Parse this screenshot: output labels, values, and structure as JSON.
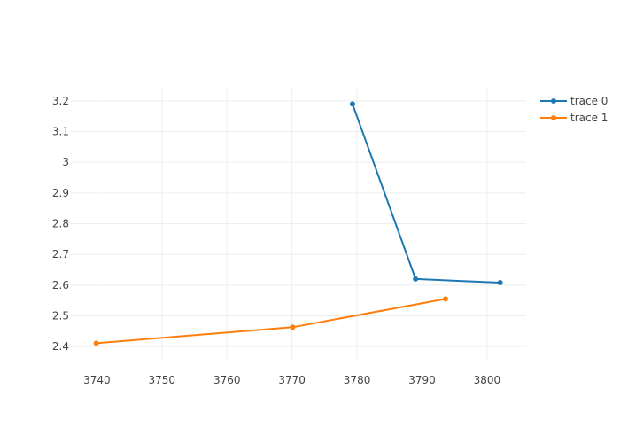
{
  "chart_data": {
    "type": "line",
    "title": "",
    "xlabel": "",
    "ylabel": "",
    "xlim": [
      3736,
      3806
    ],
    "ylim": [
      2.36,
      3.24
    ],
    "x_ticks": [
      3740,
      3750,
      3760,
      3770,
      3780,
      3790,
      3800
    ],
    "y_ticks": [
      2.4,
      2.5,
      2.6,
      2.7,
      2.8,
      2.9,
      3,
      3.1,
      3.2
    ],
    "grid": true,
    "legend_position": "top-right",
    "series": [
      {
        "name": "trace 0",
        "color": "#1f77b4",
        "points": [
          {
            "x": 3779.3,
            "y": 3.19
          },
          {
            "x": 3789.0,
            "y": 2.62
          },
          {
            "x": 3802.0,
            "y": 2.608
          }
        ]
      },
      {
        "name": "trace 1",
        "color": "#ff7f0e",
        "points": [
          {
            "x": 3739.9,
            "y": 2.411
          },
          {
            "x": 3770.1,
            "y": 2.463
          },
          {
            "x": 3793.6,
            "y": 2.555
          }
        ]
      }
    ]
  }
}
